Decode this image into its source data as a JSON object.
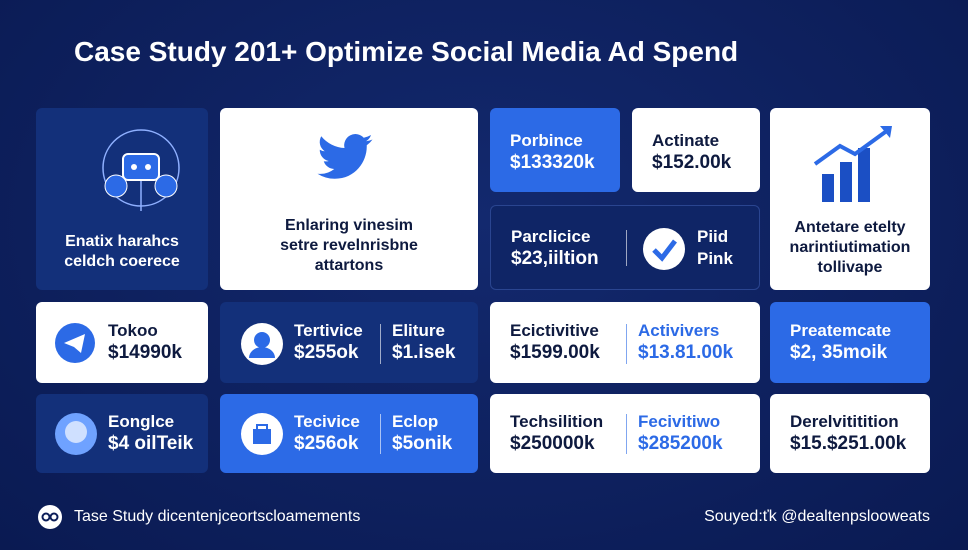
{
  "title": "Case Study 201+ Optimize Social Media Ad Spend",
  "tiles": {
    "network": {
      "lines": [
        "Enatix harahcs",
        "celdch coerece"
      ]
    },
    "twitter": {
      "lines": [
        "Enlaring vinesim",
        "setre revelnrisbne",
        "attartons"
      ]
    },
    "porbince": {
      "label": "Porbince",
      "value": "$133320k"
    },
    "actinate": {
      "label": "Actinate",
      "value": "$152.00k"
    },
    "growth": {
      "lines": [
        "Antetare etelty",
        "narintiutimation",
        "tollivape"
      ]
    },
    "parclicice": {
      "label": "Parclicice",
      "value": "$23,iiltion",
      "side": [
        "Piid",
        "Pink"
      ]
    },
    "tokoo": {
      "label": "Tokoo",
      "value": "$14990k"
    },
    "tertivice": {
      "items": [
        {
          "label": "Tertivice",
          "value": "$255ok"
        },
        {
          "label": "Eliture",
          "value": "$1.isek"
        }
      ]
    },
    "ecictivitive": {
      "items": [
        {
          "label": "Ecictivitive",
          "value": "$1599.00k"
        },
        {
          "label": "Activivers",
          "value": "$13.81.00k"
        }
      ]
    },
    "preatemcate": {
      "label": "Preatemcate",
      "value": "$2, 35moik"
    },
    "eonglce": {
      "label": "Eonglce",
      "value": "$4 oilTeik"
    },
    "tecivice": {
      "items": [
        {
          "label": "Tecivice",
          "value": "$256ok"
        },
        {
          "label": "Eclop",
          "value": "$5onik"
        }
      ]
    },
    "techsilition": {
      "items": [
        {
          "label": "Techsilition",
          "value": "$250000k"
        },
        {
          "label": "Fecivitiwo",
          "value": "$285200k"
        }
      ]
    },
    "derelvititition": {
      "label": "Derelvititition",
      "value": "$15.$251.00k"
    }
  },
  "footer": {
    "left": "Tase Study dicentenjceortscloamements",
    "right": "Souyed:ťk @dealtenpslooweats"
  }
}
